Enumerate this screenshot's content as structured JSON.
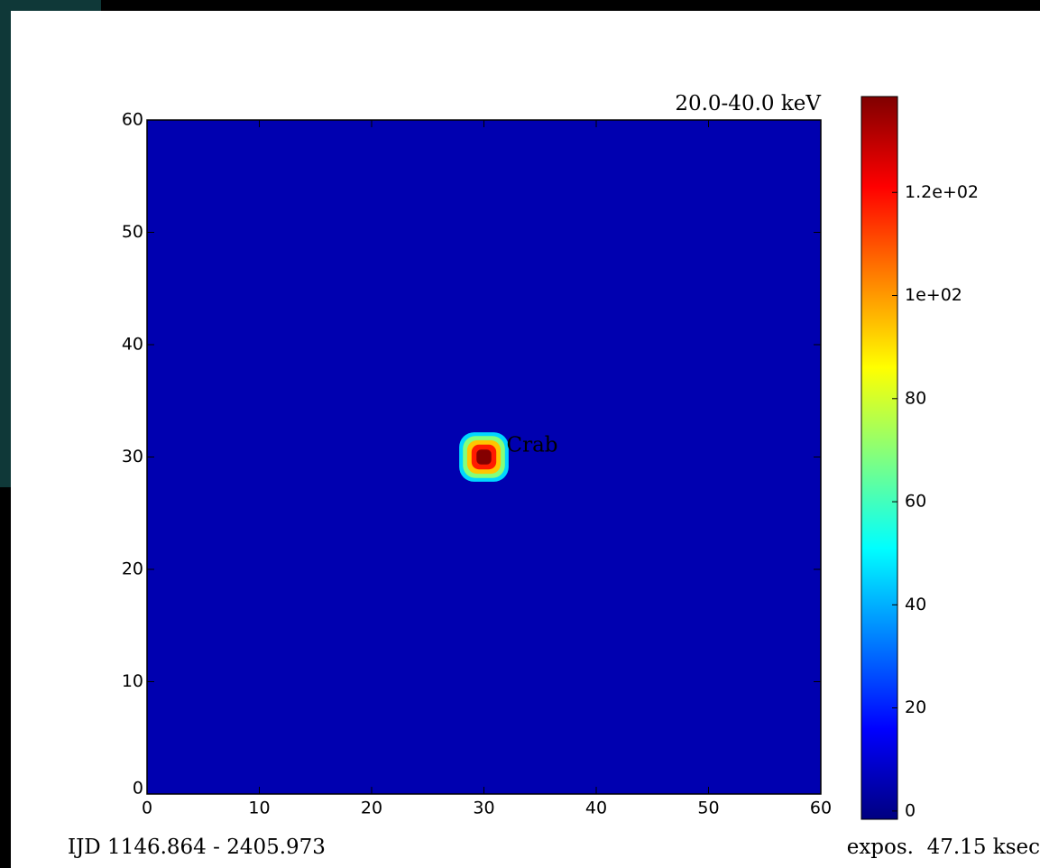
{
  "chart_data": {
    "type": "image",
    "title": "20.0-40.0 keV",
    "xlim": [
      0,
      60
    ],
    "xticks": [
      0,
      10,
      20,
      30,
      40,
      50,
      60
    ],
    "ylim": [
      0,
      60
    ],
    "yticks": [
      0,
      10,
      20,
      30,
      40,
      50,
      60
    ],
    "background": 5,
    "source": {
      "name": "Crab",
      "x": 30,
      "y": 30,
      "peak": 138,
      "width": 4.4
    },
    "clim": [
      -1.6,
      138.6
    ],
    "cticks": [
      0,
      20,
      40,
      60,
      80,
      {
        "value": 100,
        "label": "1e+02"
      },
      {
        "value": 120,
        "label": "1.2e+02"
      }
    ],
    "footer_left": "IJD 1146.864 - 2405.973",
    "footer_right": "expos.  47.15 ksec"
  }
}
